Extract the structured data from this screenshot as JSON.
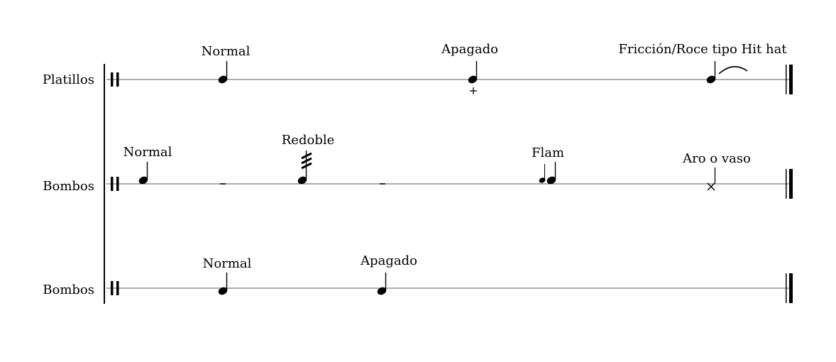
{
  "colors": {
    "ink": "#000000",
    "staff_line": "#7a7a7a",
    "background": "#ffffff"
  },
  "score": {
    "staves": [
      {
        "instrument": "Platillos",
        "notes": [
          {
            "technique": "Normal"
          },
          {
            "technique": "Apagado",
            "mark": "+"
          },
          {
            "technique": "Fricción/Roce tipo Hit hat",
            "mark": "slur"
          }
        ]
      },
      {
        "instrument": "Bombos",
        "notes": [
          {
            "technique": "Normal"
          },
          {
            "technique": "Redoble",
            "mark": "tremolo"
          },
          {
            "technique": "Flam",
            "mark": "grace-note"
          },
          {
            "technique": "Aro o vaso",
            "mark": "x-notehead"
          }
        ]
      },
      {
        "instrument": "Bombos",
        "notes": [
          {
            "technique": "Normal"
          },
          {
            "technique": "Apagado"
          }
        ]
      }
    ]
  }
}
